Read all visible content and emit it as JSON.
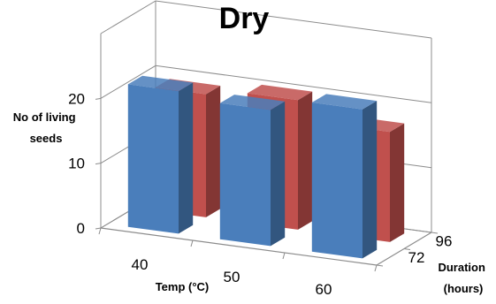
{
  "chart_data": {
    "type": "bar",
    "subtype": "3d-column",
    "title": "Dry",
    "xlabel": "Temp (°C)",
    "ylabel": "No of living seeds",
    "zlabel": "Duration (hours)",
    "categories": [
      "40",
      "50",
      "60"
    ],
    "depth_categories": [
      "72",
      "96"
    ],
    "ylim": [
      0,
      20
    ],
    "yticks": [
      "0",
      "10",
      "20"
    ],
    "grid": true,
    "series": [
      {
        "name": "72",
        "values": [
          22,
          21,
          23
        ],
        "color": "#4a7ebb"
      },
      {
        "name": "96",
        "values": [
          19,
          20,
          17
        ],
        "color": "#c0504d"
      }
    ]
  }
}
